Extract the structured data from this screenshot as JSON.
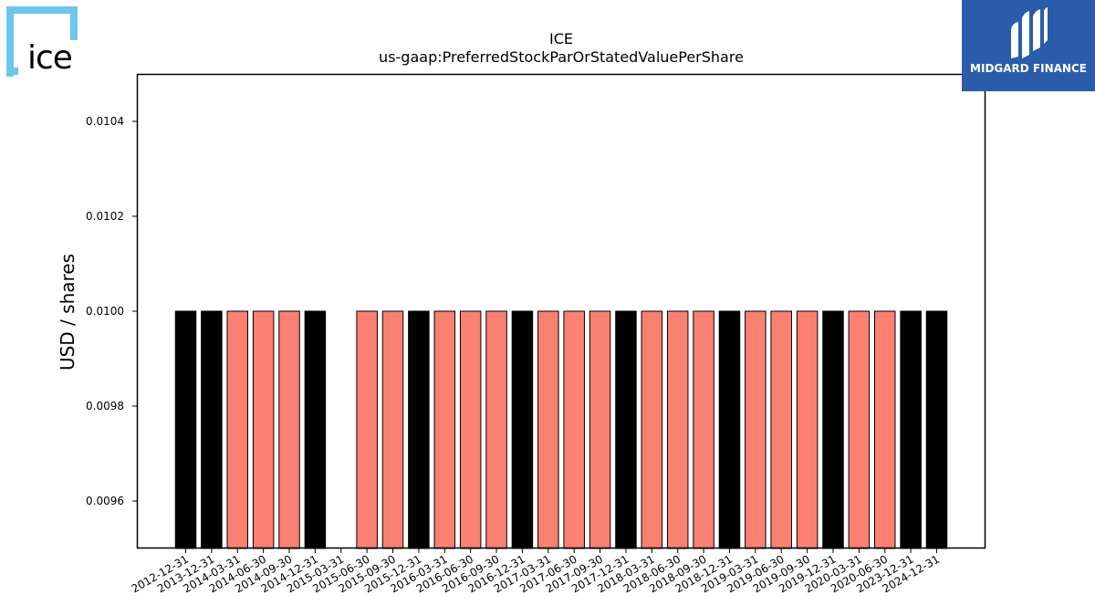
{
  "logos": {
    "ice_text": "ice",
    "midgard_text": "MIDGARD FINANCE"
  },
  "colors": {
    "series_black": "#000000",
    "series_salmon": "#fa8072",
    "ice_blue": "#6ec6ea",
    "midgard_blue": "#2a5caa"
  },
  "chart_data": {
    "type": "bar",
    "title": "ICE",
    "subtitle": "us-gaap:PreferredStockParOrStatedValuePerShare",
    "xlabel": "",
    "ylabel": "USD / shares",
    "ylim": [
      0.0095,
      0.0105
    ],
    "yticks": [
      0.0096,
      0.0098,
      0.01,
      0.0102,
      0.0104
    ],
    "ytick_labels": [
      "0.0096",
      "0.0098",
      "0.0100",
      "0.0102",
      "0.0104"
    ],
    "grid": false,
    "categories": [
      "2012-12-31",
      "2013-12-31",
      "2014-03-31",
      "2014-06-30",
      "2014-09-30",
      "2014-12-31",
      "2015-03-31",
      "2015-06-30",
      "2015-09-30",
      "2015-12-31",
      "2016-03-31",
      "2016-06-30",
      "2016-09-30",
      "2016-12-31",
      "2017-03-31",
      "2017-06-30",
      "2017-09-30",
      "2017-12-31",
      "2018-03-31",
      "2018-06-30",
      "2018-09-30",
      "2018-12-31",
      "2019-03-31",
      "2019-06-30",
      "2019-09-30",
      "2019-12-31",
      "2020-03-31",
      "2020-06-30",
      "2023-12-31",
      "2024-12-31"
    ],
    "values": [
      0.01,
      0.01,
      0.01,
      0.01,
      0.01,
      0.01,
      null,
      0.01,
      0.01,
      0.01,
      0.01,
      0.01,
      0.01,
      0.01,
      0.01,
      0.01,
      0.01,
      0.01,
      0.01,
      0.01,
      0.01,
      0.01,
      0.01,
      0.01,
      0.01,
      0.01,
      0.01,
      0.01,
      0.01,
      0.01
    ],
    "bar_colors": [
      "#000000",
      "#000000",
      "#fa8072",
      "#fa8072",
      "#fa8072",
      "#000000",
      "#ffffff",
      "#fa8072",
      "#fa8072",
      "#000000",
      "#fa8072",
      "#fa8072",
      "#fa8072",
      "#000000",
      "#fa8072",
      "#fa8072",
      "#fa8072",
      "#000000",
      "#fa8072",
      "#fa8072",
      "#fa8072",
      "#000000",
      "#fa8072",
      "#fa8072",
      "#fa8072",
      "#000000",
      "#fa8072",
      "#fa8072",
      "#000000",
      "#000000"
    ]
  }
}
